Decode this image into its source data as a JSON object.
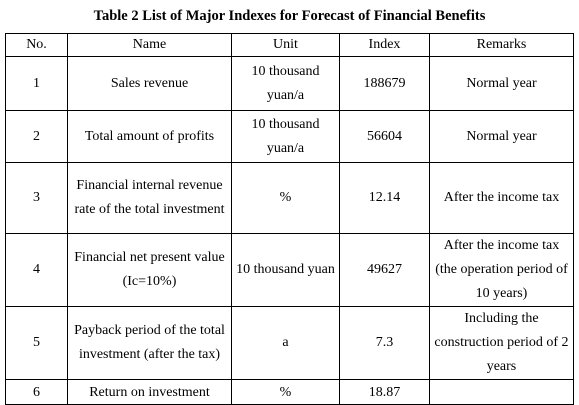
{
  "title": "Table 2 List of Major Indexes for Forecast of Financial Benefits",
  "table": {
    "headers": [
      "No.",
      "Name",
      "Unit",
      "Index",
      "Remarks"
    ],
    "rows": [
      {
        "no": "1",
        "name": "Sales revenue",
        "unit": "10 thousand yuan/a",
        "index": "188679",
        "remarks": "Normal year"
      },
      {
        "no": "2",
        "name": "Total amount of profits",
        "unit": "10 thousand yuan/a",
        "index": "56604",
        "remarks": "Normal year"
      },
      {
        "no": "3",
        "name": "Financial internal revenue rate of the total investment",
        "unit": "%",
        "index": "12.14",
        "remarks": "After the income tax"
      },
      {
        "no": "4",
        "name": "Financial net present value (Ic=10%)",
        "unit": "10 thousand yuan",
        "index": "49627",
        "remarks": "After the income tax (the operation period of 10 years)"
      },
      {
        "no": "5",
        "name": "Payback period of the total investment (after the tax)",
        "unit": "a",
        "index": "7.3",
        "remarks": "Including the construction period of 2 years"
      },
      {
        "no": "6",
        "name": "Return on investment",
        "unit": "%",
        "index": "18.87",
        "remarks": ""
      }
    ]
  }
}
